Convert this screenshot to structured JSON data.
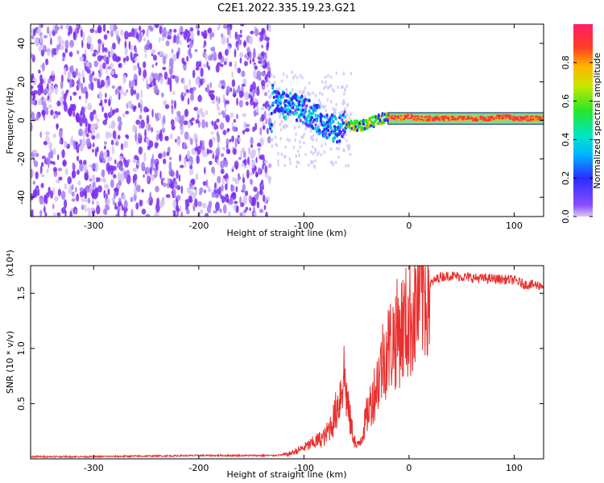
{
  "title": "C2E1.2022.335.19.23.G21",
  "colors": {
    "snr_line": "#e8302e",
    "scatter_noise": "#7a2cf0",
    "ridge": "#e8302e",
    "colorbar": [
      "#dcc8f5",
      "#8a4cff",
      "#2a2cff",
      "#00b4ff",
      "#00e6c8",
      "#28e628",
      "#c8e600",
      "#ffb400",
      "#ff3c28",
      "#ff1e64"
    ]
  },
  "chart_data": [
    {
      "type": "heatmap",
      "title": "",
      "xlabel": "Height of straight line (km)",
      "ylabel": "Frequency (Hz)",
      "xlim": [
        -360,
        128
      ],
      "ylim": [
        -50,
        50
      ],
      "xticks": [
        -300,
        -200,
        -100,
        0,
        100
      ],
      "yticks": [
        -40,
        -20,
        0,
        20,
        40
      ],
      "ridge": {
        "x": [
          -130,
          -120,
          -110,
          -100,
          -90,
          -80,
          -70,
          -60,
          -50,
          -40,
          -30,
          -20,
          -10,
          0,
          10,
          20,
          40,
          60,
          80,
          90,
          100,
          128
        ],
        "y": [
          12,
          8,
          7,
          5,
          2,
          -2,
          -5,
          -2,
          -3,
          -2,
          0,
          2,
          1,
          2,
          1,
          1,
          1,
          1,
          1,
          2,
          1,
          1
        ]
      },
      "colorbar": {
        "label": "Normalized spectral amplitude",
        "range": [
          0,
          1
        ],
        "ticks": [
          "0.0",
          "0.2",
          "0.4",
          "0.6",
          "0.8"
        ]
      }
    },
    {
      "type": "line",
      "title": "",
      "xlabel": "Height of straight line (km)",
      "ylabel": "SNR (10 * v/v)",
      "multiplier": "(x10⁴)",
      "xlim": [
        -360,
        128
      ],
      "ylim": [
        0,
        1.75
      ],
      "xticks": [
        -300,
        -200,
        -100,
        0,
        100
      ],
      "yticks": [
        "0.5",
        "1.0",
        "1.5"
      ],
      "series": [
        {
          "x": [
            -360,
            -300,
            -200,
            -130,
            -115,
            -100,
            -90,
            -80,
            -72,
            -66,
            -62,
            -58,
            -54,
            -50,
            -45,
            -40,
            -35,
            -30,
            -25,
            -20,
            -15,
            -10,
            -5,
            0,
            5,
            10,
            15,
            20,
            25,
            30,
            40,
            60,
            80,
            100,
            110,
            128
          ],
          "y": [
            0.02,
            0.02,
            0.03,
            0.03,
            0.04,
            0.1,
            0.15,
            0.2,
            0.35,
            0.55,
            0.8,
            0.45,
            0.25,
            0.1,
            0.2,
            0.4,
            0.55,
            0.7,
            0.9,
            1.0,
            1.08,
            1.15,
            1.2,
            1.25,
            1.35,
            1.45,
            1.52,
            1.58,
            1.62,
            1.65,
            1.66,
            1.64,
            1.63,
            1.62,
            1.58,
            1.57
          ]
        }
      ]
    }
  ]
}
